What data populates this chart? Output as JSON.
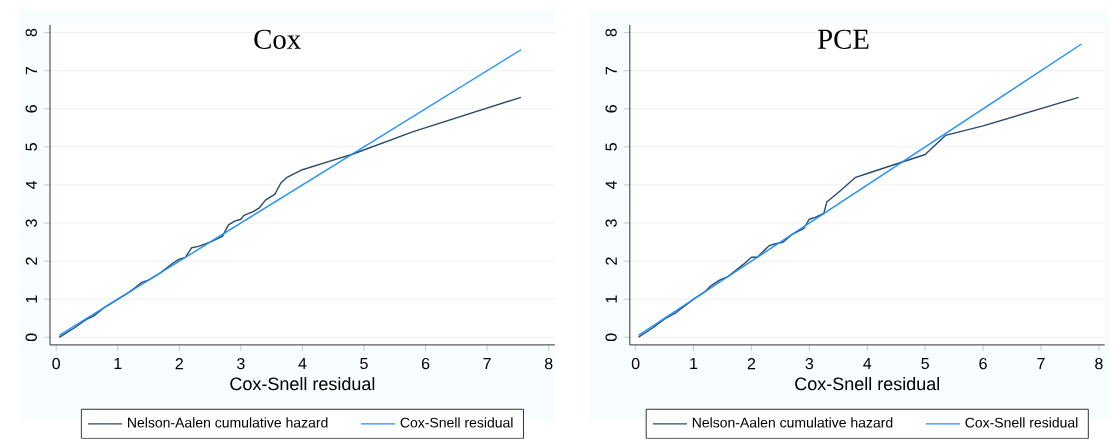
{
  "chart_data": [
    {
      "type": "line",
      "title": "Cox",
      "xlabel": "Cox-Snell residual",
      "xlim": [
        -0.1,
        8.1
      ],
      "ylim": [
        -0.2,
        8.2
      ],
      "xticks": [
        0,
        1,
        2,
        3,
        4,
        5,
        6,
        7,
        8
      ],
      "yticks": [
        0,
        1,
        2,
        3,
        4,
        5,
        6,
        7,
        8
      ],
      "grid": "y",
      "legend": "bottom",
      "series": [
        {
          "name": "Nelson-Aalen cumulative hazard",
          "color": "#2a4a6a",
          "x": [
            0.05,
            0.3,
            0.5,
            0.6,
            0.8,
            1.0,
            1.2,
            1.4,
            1.5,
            1.7,
            1.9,
            2.0,
            2.1,
            2.2,
            2.3,
            2.5,
            2.7,
            2.8,
            2.9,
            3.0,
            3.05,
            3.2,
            3.3,
            3.4,
            3.55,
            3.65,
            3.75,
            4.0,
            4.5,
            4.8,
            5.8,
            7.55
          ],
          "values": [
            0,
            0.25,
            0.48,
            0.55,
            0.8,
            1.0,
            1.2,
            1.45,
            1.5,
            1.7,
            1.95,
            2.05,
            2.1,
            2.35,
            2.38,
            2.5,
            2.65,
            2.95,
            3.05,
            3.1,
            3.2,
            3.3,
            3.4,
            3.6,
            3.75,
            4.05,
            4.2,
            4.4,
            4.65,
            4.8,
            5.4,
            6.3
          ]
        },
        {
          "name": "Cox-Snell residual",
          "color": "#1e90ff",
          "x": [
            0.05,
            7.55
          ],
          "values": [
            0.05,
            7.55
          ]
        }
      ]
    },
    {
      "type": "line",
      "title": "PCE",
      "xlabel": "Cox-Snell residual",
      "xlim": [
        -0.1,
        8.1
      ],
      "ylim": [
        -0.2,
        8.2
      ],
      "xticks": [
        0,
        1,
        2,
        3,
        4,
        5,
        6,
        7,
        8
      ],
      "yticks": [
        0,
        1,
        2,
        3,
        4,
        5,
        6,
        7,
        8
      ],
      "grid": "y",
      "legend": "bottom",
      "series": [
        {
          "name": "Nelson-Aalen cumulative hazard",
          "color": "#2a4a6a",
          "x": [
            0.05,
            0.3,
            0.5,
            0.7,
            1.0,
            1.2,
            1.3,
            1.45,
            1.6,
            1.85,
            2.0,
            2.1,
            2.3,
            2.4,
            2.55,
            2.7,
            2.9,
            3.0,
            3.1,
            3.25,
            3.3,
            3.5,
            3.8,
            4.0,
            4.5,
            5.0,
            5.35,
            6.0,
            7.65
          ],
          "values": [
            0,
            0.25,
            0.48,
            0.65,
            1.0,
            1.2,
            1.35,
            1.5,
            1.6,
            1.9,
            2.1,
            2.1,
            2.4,
            2.45,
            2.5,
            2.7,
            2.85,
            3.1,
            3.15,
            3.25,
            3.55,
            3.8,
            4.2,
            4.3,
            4.55,
            4.8,
            5.3,
            5.55,
            6.3
          ]
        },
        {
          "name": "Cox-Snell residual",
          "color": "#1e90ff",
          "x": [
            0.05,
            7.7
          ],
          "values": [
            0.05,
            7.7
          ]
        }
      ]
    }
  ]
}
